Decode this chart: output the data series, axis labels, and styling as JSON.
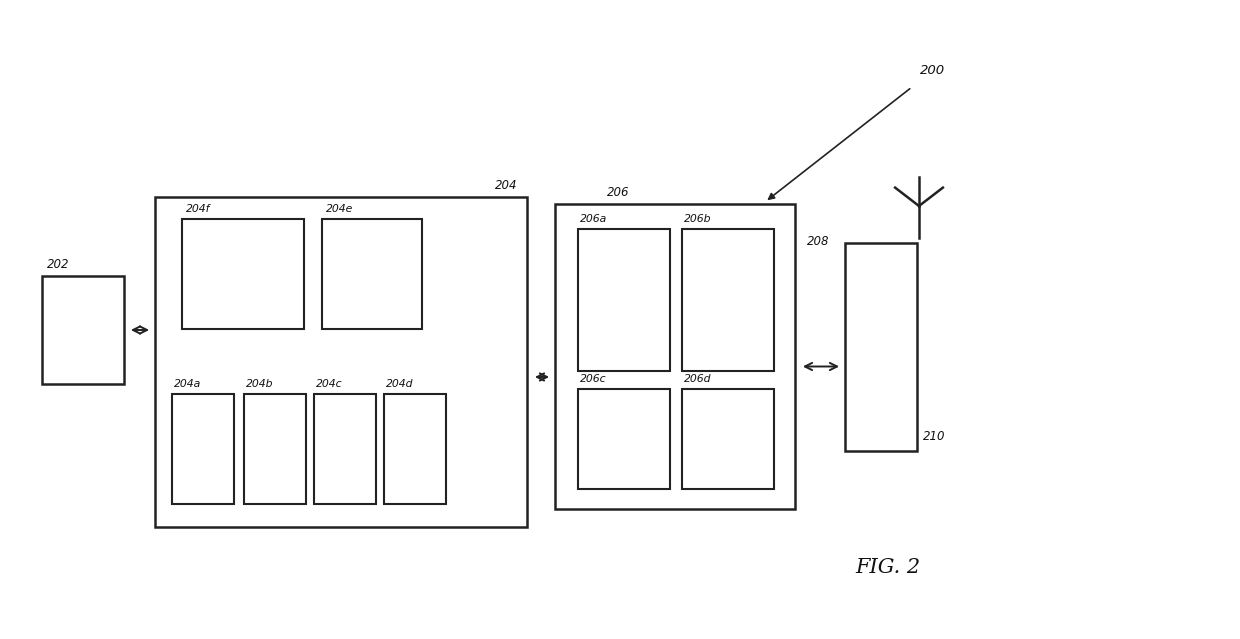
{
  "bg_color": "#ffffff",
  "text_color": "#111111",
  "fig_label": "FIG. 2",
  "label_200": "200",
  "label_202": "202",
  "label_204": "204",
  "label_204a": "204a",
  "label_204b": "204b",
  "label_204c": "204c",
  "label_204d": "204d",
  "label_204e": "204e",
  "label_204f": "204f",
  "label_206": "206",
  "label_206a": "206a",
  "label_206b": "206b",
  "label_206c": "206c",
  "label_206d": "206d",
  "label_208": "208",
  "label_210": "210"
}
